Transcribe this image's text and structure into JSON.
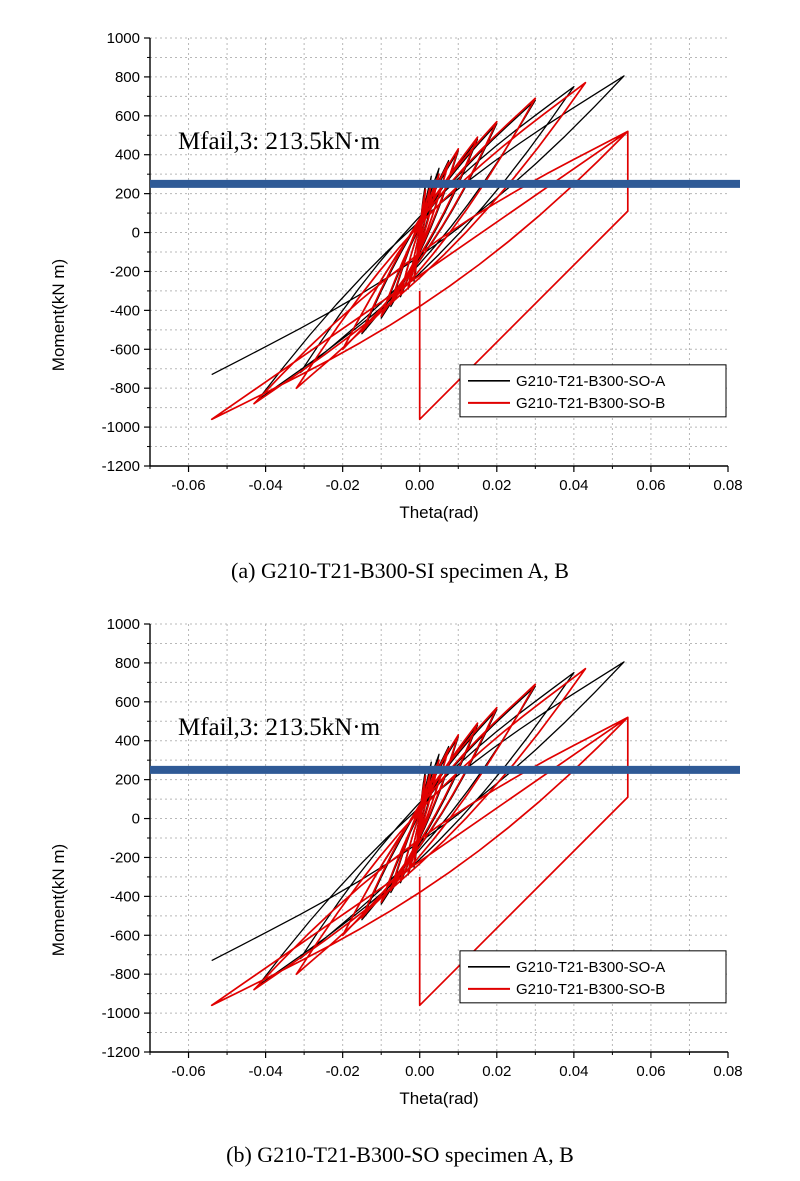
{
  "chart_data": [
    {
      "type": "line",
      "panel": "a",
      "caption": "(a) G210-T21-B300-SI specimen A, B",
      "xlabel": "Theta(rad)",
      "ylabel": "Moment(kN m)",
      "xlim": [
        -0.07,
        0.08
      ],
      "ylim": [
        -1200,
        1000
      ],
      "x_ticks": [
        "-0.06",
        "-0.04",
        "-0.02",
        "0.00",
        "0.02",
        "0.04",
        "0.06",
        "0.08"
      ],
      "y_ticks": [
        "1000",
        "800",
        "600",
        "400",
        "200",
        "0",
        "-200",
        "-400",
        "-600",
        "-800",
        "-1000",
        "-1200"
      ],
      "grid": true,
      "legend_position": "bottom-right",
      "annotation": {
        "text": "Mfail,3: 213.5kN·m"
      },
      "reference_line": {
        "y": 250,
        "color": "#2f5a96"
      },
      "series": [
        {
          "name": "G210-T21-B300-SO-A",
          "color": "#000000",
          "cycle_peaks": [
            {
              "x": 0.0015,
              "y": 250
            },
            {
              "x": -0.0015,
              "y": -250
            },
            {
              "x": 0.003,
              "y": 290
            },
            {
              "x": -0.003,
              "y": -290
            },
            {
              "x": 0.005,
              "y": 330
            },
            {
              "x": -0.005,
              "y": -330
            },
            {
              "x": 0.0075,
              "y": 370
            },
            {
              "x": -0.0075,
              "y": -380
            },
            {
              "x": 0.01,
              "y": 420
            },
            {
              "x": -0.01,
              "y": -440
            },
            {
              "x": 0.015,
              "y": 480
            },
            {
              "x": -0.015,
              "y": -520
            },
            {
              "x": 0.02,
              "y": 560
            },
            {
              "x": -0.02,
              "y": -600
            },
            {
              "x": 0.03,
              "y": 680
            },
            {
              "x": -0.031,
              "y": -720
            },
            {
              "x": 0.04,
              "y": 750
            },
            {
              "x": -0.042,
              "y": -860
            },
            {
              "x": 0.053,
              "y": 805
            },
            {
              "x": -0.054,
              "y": -730
            }
          ]
        },
        {
          "name": "G210-T21-B300-SO-B",
          "color": "#e00000",
          "cycle_peaks": [
            {
              "x": 0.0015,
              "y": 220
            },
            {
              "x": -0.0015,
              "y": -230
            },
            {
              "x": 0.003,
              "y": 260
            },
            {
              "x": -0.003,
              "y": -280
            },
            {
              "x": 0.005,
              "y": 300
            },
            {
              "x": -0.005,
              "y": -320
            },
            {
              "x": 0.0075,
              "y": 360
            },
            {
              "x": -0.0075,
              "y": -370
            },
            {
              "x": 0.01,
              "y": 430
            },
            {
              "x": -0.01,
              "y": -430
            },
            {
              "x": 0.015,
              "y": 490
            },
            {
              "x": -0.015,
              "y": -510
            },
            {
              "x": 0.02,
              "y": 570
            },
            {
              "x": -0.02,
              "y": -600
            },
            {
              "x": 0.03,
              "y": 690
            },
            {
              "x": -0.032,
              "y": -800
            },
            {
              "x": 0.043,
              "y": 770
            },
            {
              "x": -0.043,
              "y": -880
            },
            {
              "x": 0.054,
              "y": 520
            },
            {
              "x": -0.054,
              "y": -960
            }
          ],
          "failure_path": [
            {
              "x": 0.054,
              "y": 520
            },
            {
              "x": 0.054,
              "y": 110
            },
            {
              "x": 0.0,
              "y": -960
            },
            {
              "x": 0.0,
              "y": -300
            }
          ]
        }
      ]
    },
    {
      "type": "line",
      "panel": "b",
      "caption": "(b) G210-T21-B300-SO specimen A, B",
      "xlabel": "Theta(rad)",
      "ylabel": "Moment(kN m)",
      "xlim": [
        -0.07,
        0.08
      ],
      "ylim": [
        -1200,
        1000
      ],
      "x_ticks": [
        "-0.06",
        "-0.04",
        "-0.02",
        "0.00",
        "0.02",
        "0.04",
        "0.06",
        "0.08"
      ],
      "y_ticks": [
        "1000",
        "800",
        "600",
        "400",
        "200",
        "0",
        "-200",
        "-400",
        "-600",
        "-800",
        "-1000",
        "-1200"
      ],
      "grid": true,
      "legend_position": "bottom-right",
      "annotation": {
        "text": "Mfail,3: 213.5kN·m"
      },
      "reference_line": {
        "y": 250,
        "color": "#2f5a96"
      },
      "series": [
        {
          "name": "G210-T21-B300-SO-A",
          "color": "#000000",
          "cycle_peaks": [
            {
              "x": 0.0015,
              "y": 250
            },
            {
              "x": -0.0015,
              "y": -250
            },
            {
              "x": 0.003,
              "y": 290
            },
            {
              "x": -0.003,
              "y": -290
            },
            {
              "x": 0.005,
              "y": 330
            },
            {
              "x": -0.005,
              "y": -330
            },
            {
              "x": 0.0075,
              "y": 370
            },
            {
              "x": -0.0075,
              "y": -380
            },
            {
              "x": 0.01,
              "y": 420
            },
            {
              "x": -0.01,
              "y": -440
            },
            {
              "x": 0.015,
              "y": 480
            },
            {
              "x": -0.015,
              "y": -520
            },
            {
              "x": 0.02,
              "y": 560
            },
            {
              "x": -0.02,
              "y": -600
            },
            {
              "x": 0.03,
              "y": 680
            },
            {
              "x": -0.031,
              "y": -720
            },
            {
              "x": 0.04,
              "y": 750
            },
            {
              "x": -0.042,
              "y": -860
            },
            {
              "x": 0.053,
              "y": 805
            },
            {
              "x": -0.054,
              "y": -730
            }
          ]
        },
        {
          "name": "G210-T21-B300-SO-B",
          "color": "#e00000",
          "cycle_peaks": [
            {
              "x": 0.0015,
              "y": 220
            },
            {
              "x": -0.0015,
              "y": -230
            },
            {
              "x": 0.003,
              "y": 260
            },
            {
              "x": -0.003,
              "y": -280
            },
            {
              "x": 0.005,
              "y": 300
            },
            {
              "x": -0.005,
              "y": -320
            },
            {
              "x": 0.0075,
              "y": 360
            },
            {
              "x": -0.0075,
              "y": -370
            },
            {
              "x": 0.01,
              "y": 430
            },
            {
              "x": -0.01,
              "y": -430
            },
            {
              "x": 0.015,
              "y": 490
            },
            {
              "x": -0.015,
              "y": -510
            },
            {
              "x": 0.02,
              "y": 570
            },
            {
              "x": -0.02,
              "y": -600
            },
            {
              "x": 0.03,
              "y": 690
            },
            {
              "x": -0.032,
              "y": -800
            },
            {
              "x": 0.043,
              "y": 770
            },
            {
              "x": -0.043,
              "y": -880
            },
            {
              "x": 0.054,
              "y": 520
            },
            {
              "x": -0.054,
              "y": -960
            }
          ],
          "failure_path": [
            {
              "x": 0.054,
              "y": 520
            },
            {
              "x": 0.054,
              "y": 110
            },
            {
              "x": 0.0,
              "y": -960
            },
            {
              "x": 0.0,
              "y": -300
            }
          ]
        }
      ]
    }
  ]
}
